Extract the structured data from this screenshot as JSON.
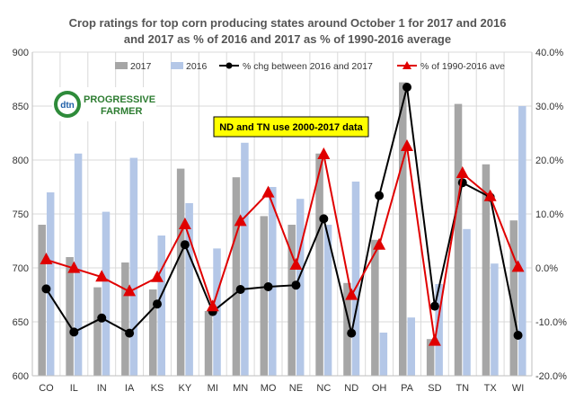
{
  "chart_data": {
    "type": "bar+line",
    "title_lines": [
      "Crop ratings for top corn producing states around October 1 for 2017 and 2016",
      "and 2017 as %  of 2016 and 2017 as %  of 1990-2016 average"
    ],
    "categories": [
      "CO",
      "IL",
      "IN",
      "IA",
      "KS",
      "KY",
      "MI",
      "MN",
      "MO",
      "NE",
      "NC",
      "ND",
      "OH",
      "PA",
      "SD",
      "TN",
      "TX",
      "WI"
    ],
    "left_axis": {
      "ylim": [
        600,
        900
      ],
      "ticks": [
        "600",
        "650",
        "700",
        "750",
        "800",
        "850",
        "900"
      ]
    },
    "right_axis": {
      "ylim": [
        -20,
        40
      ],
      "ticks": [
        "-20.0%",
        "-10.0%",
        "0.0%",
        "10.0%",
        "20.0%",
        "30.0%",
        "40.0%"
      ]
    },
    "bar_series": [
      {
        "name": "2017",
        "color": "#a6a6a6",
        "values": [
          740,
          710,
          682,
          705,
          680,
          792,
          660,
          784,
          748,
          740,
          806,
          686,
          726,
          872,
          634,
          852,
          796,
          744
        ]
      },
      {
        "name": "2016",
        "color": "#b4c7e7",
        "values": [
          770,
          806,
          752,
          802,
          730,
          760,
          718,
          816,
          775,
          764,
          740,
          780,
          640,
          654,
          685,
          736,
          704,
          850
        ]
      }
    ],
    "line_series": [
      {
        "name": "% chg between 2016 and 2017",
        "color": "#000000",
        "marker": "circle",
        "values": [
          -3.9,
          -11.9,
          -9.3,
          -12.1,
          -6.7,
          4.3,
          -8.1,
          -4.0,
          -3.5,
          -3.2,
          9.1,
          -12.1,
          13.4,
          33.5,
          -7.1,
          15.8,
          13.1,
          -12.5
        ]
      },
      {
        "name": "% of 1990-2016 ave",
        "color": "#e00000",
        "marker": "triangle",
        "values": [
          1.5,
          -0.1,
          -1.7,
          -4.4,
          -1.8,
          8.0,
          -7.2,
          8.6,
          13.9,
          0.5,
          21.0,
          -5.1,
          4.2,
          22.5,
          -13.6,
          17.5,
          13.2,
          0.1
        ]
      }
    ],
    "grid": true,
    "legend_position": "top",
    "annotation": "ND and TN use 2000-2017 data"
  },
  "logo": {
    "abbrev": "dtn",
    "line1": "PROGRESSIVE",
    "line2": "FARMER"
  }
}
